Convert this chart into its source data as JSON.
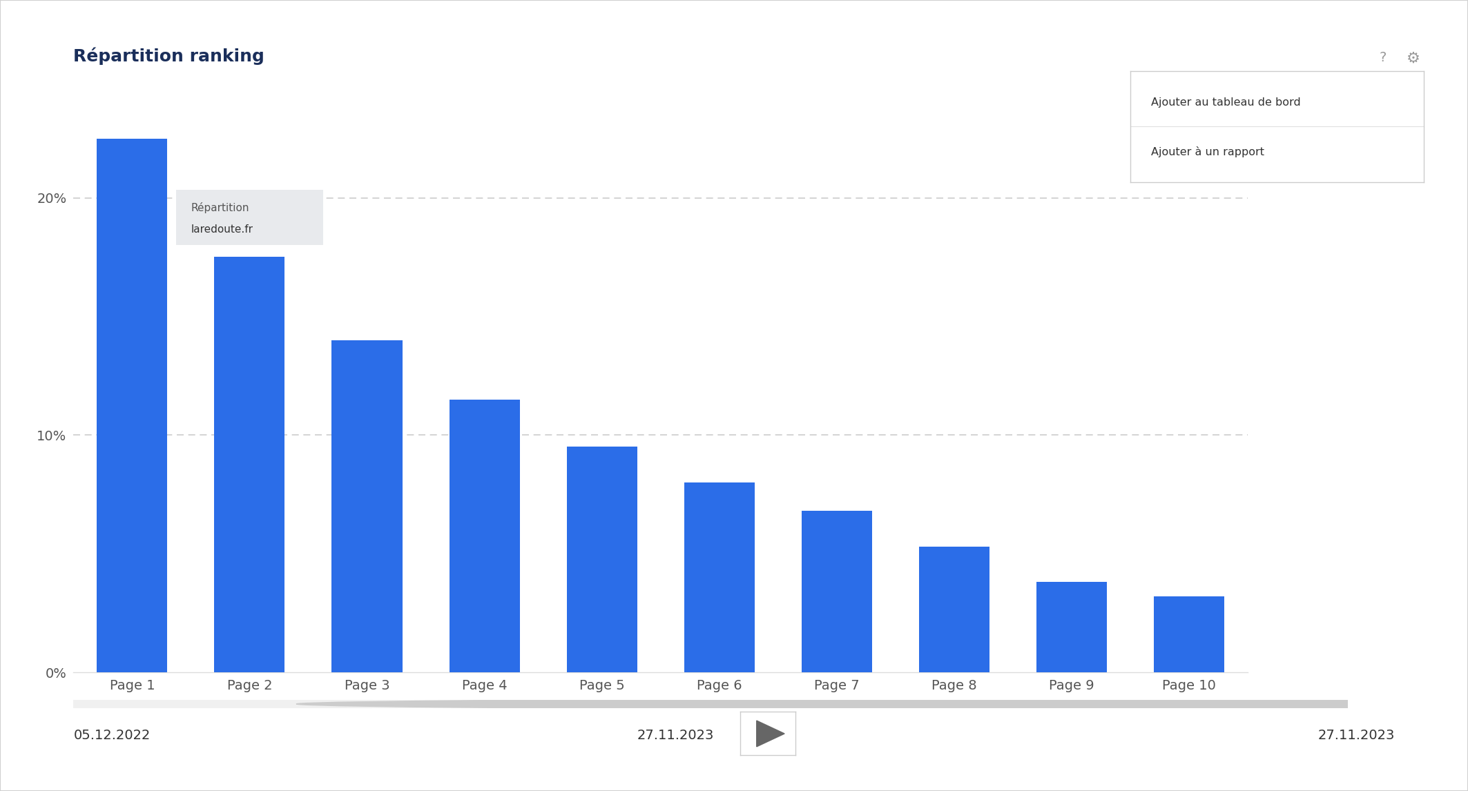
{
  "title": "Répartition ranking",
  "categories": [
    "Page 1",
    "Page 2",
    "Page 3",
    "Page 4",
    "Page 5",
    "Page 6",
    "Page 7",
    "Page 8",
    "Page 9",
    "Page 10"
  ],
  "values": [
    22.5,
    17.5,
    14.0,
    11.5,
    9.5,
    8.0,
    6.8,
    5.3,
    3.8,
    3.2
  ],
  "bar_color": "#2b6de8",
  "yticks": [
    0,
    10,
    20
  ],
  "ylim": [
    0,
    24
  ],
  "background_color": "#ffffff",
  "title_color": "#1a2e5a",
  "axis_label_color": "#555555",
  "grid_color": "#cccccc",
  "date_left": "05.12.2022",
  "date_center": "27.11.2023",
  "date_right": "27.11.2023",
  "tooltip_title": "Répartition",
  "tooltip_domain": "laredoute.fr",
  "menu_items": [
    "Ajouter au tableau de bord",
    "Ajouter à un rapport"
  ],
  "title_fontsize": 18,
  "tick_fontsize": 14,
  "date_fontsize": 14
}
